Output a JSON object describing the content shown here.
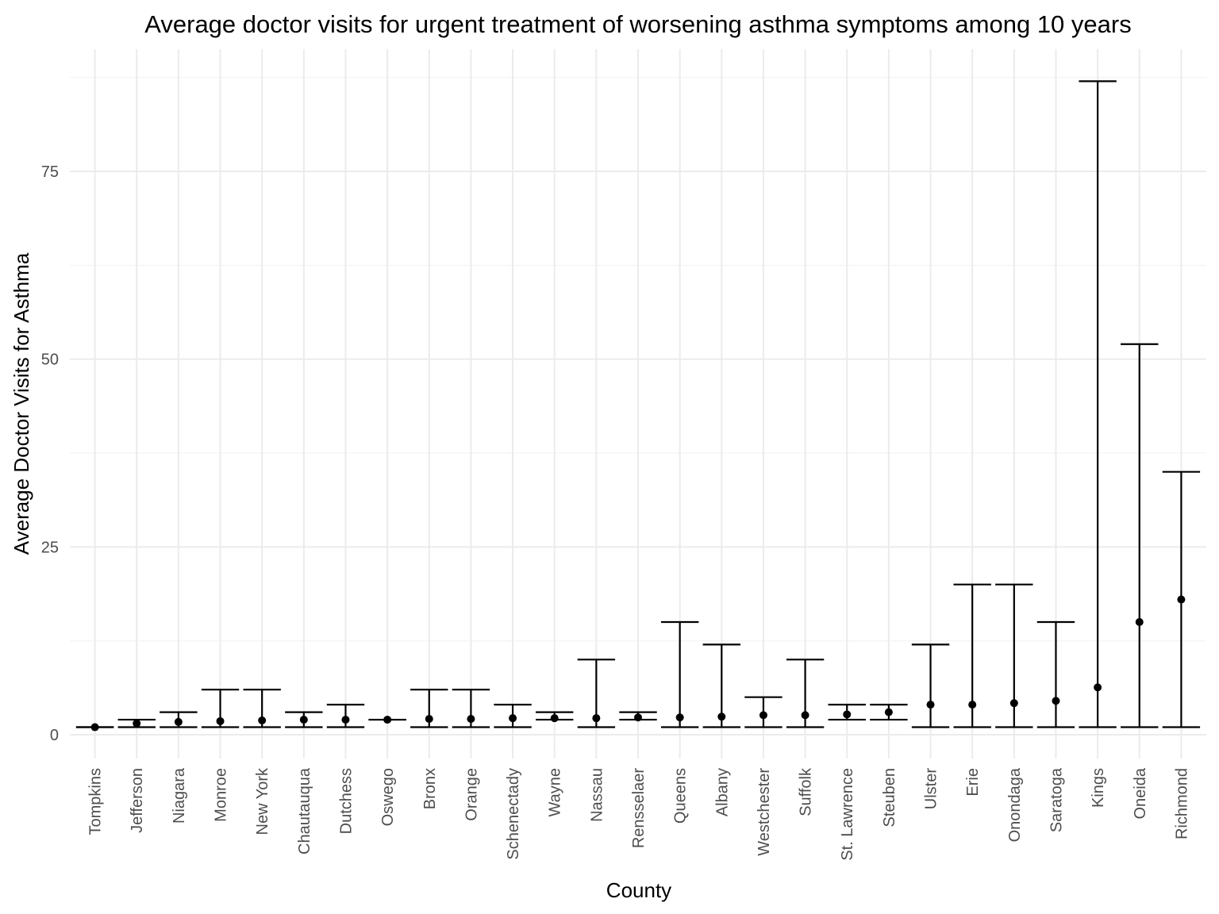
{
  "chart_data": {
    "type": "errorbar",
    "title": "Average doctor visits for urgent treatment of worsening asthma symptoms among 10 years",
    "xlabel": "County",
    "ylabel": "Average Doctor Visits for Asthma",
    "ylim": [
      -3,
      91
    ],
    "yticks": [
      0,
      25,
      50,
      75
    ],
    "grid": true,
    "categories": [
      "Tompkins",
      "Jefferson",
      "Niagara",
      "Monroe",
      "New York",
      "Chautauqua",
      "Dutchess",
      "Oswego",
      "Bronx",
      "Orange",
      "Schenectady",
      "Wayne",
      "Nassau",
      "Rensselaer",
      "Queens",
      "Albany",
      "Westchester",
      "Suffolk",
      "St. Lawrence",
      "Steuben",
      "Ulster",
      "Erie",
      "Onondaga",
      "Saratoga",
      "Kings",
      "Oneida",
      "Richmond"
    ],
    "series": [
      {
        "values": [
          1.0,
          1.5,
          1.7,
          1.8,
          1.9,
          2.0,
          2.0,
          2.0,
          2.1,
          2.1,
          2.2,
          2.2,
          2.2,
          2.3,
          2.3,
          2.4,
          2.6,
          2.6,
          2.7,
          3.0,
          4.0,
          4.0,
          4.2,
          4.5,
          6.3,
          15.0,
          18.0
        ],
        "lower": [
          1,
          1,
          1,
          1,
          1,
          1,
          1,
          2,
          1,
          1,
          1,
          2,
          1,
          2,
          1,
          1,
          1,
          1,
          2,
          2,
          1,
          1,
          1,
          1,
          1,
          1,
          1
        ],
        "upper": [
          1,
          2,
          3,
          6,
          6,
          3,
          4,
          2,
          6,
          6,
          4,
          3,
          10,
          3,
          15,
          12,
          5,
          10,
          4,
          4,
          12,
          20,
          20,
          15,
          87,
          52,
          35
        ]
      }
    ]
  }
}
